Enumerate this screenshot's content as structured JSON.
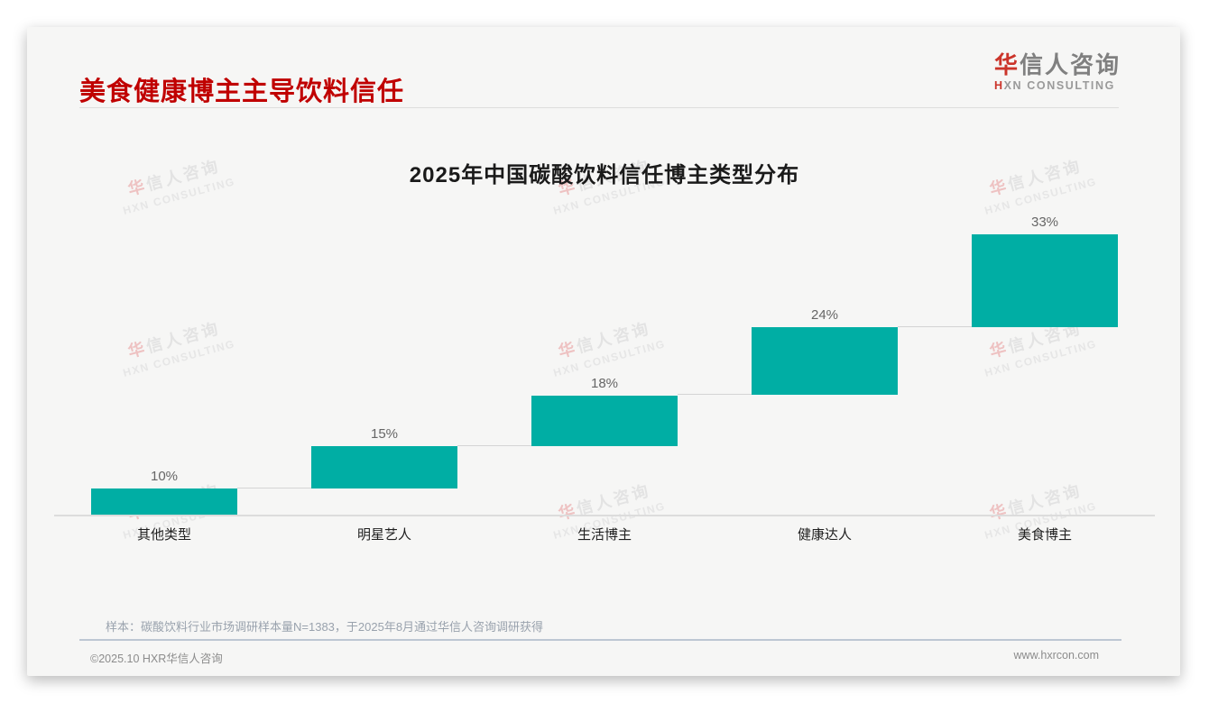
{
  "page": {
    "outer_bg": "#ffffff",
    "card_bg": "#f6f6f5"
  },
  "header": {
    "title": "美食健康博主主导饮料信任",
    "title_color": "#C00000"
  },
  "logo": {
    "zh_accent": "华",
    "zh_rest": "信人咨询",
    "en_accent": "H",
    "en_rest": "XN CONSULTING",
    "accent_color": "#cb342a"
  },
  "watermark": {
    "zh_accent": "华",
    "zh_rest": "信人咨询",
    "en": "HXN CONSULTING"
  },
  "chart_data": {
    "type": "bar",
    "variant": "waterfall-steps",
    "title": "2025年中国碳酸饮料信任博主类型分布",
    "categories": [
      "其他类型",
      "明星艺人",
      "生活博主",
      "健康达人",
      "美食博主"
    ],
    "values": [
      10,
      15,
      18,
      24,
      33
    ],
    "data_labels": [
      "10%",
      "15%",
      "18%",
      "24%",
      "33%"
    ],
    "cumulative_starts": [
      0,
      10,
      25,
      43,
      67
    ],
    "bar_color": "#00AEA4",
    "connector_color": "#d4d4d4",
    "xlabel": "",
    "ylabel": "",
    "ylim": [
      0,
      100
    ],
    "grid": false,
    "legend": "none"
  },
  "footnote": "样本：碳酸饮料行业市场调研样本量N=1383，于2025年8月通过华信人咨询调研获得",
  "footer": {
    "copyright": "©2025.10 HXR华信人咨询",
    "website": "www.hxrcon.com"
  }
}
